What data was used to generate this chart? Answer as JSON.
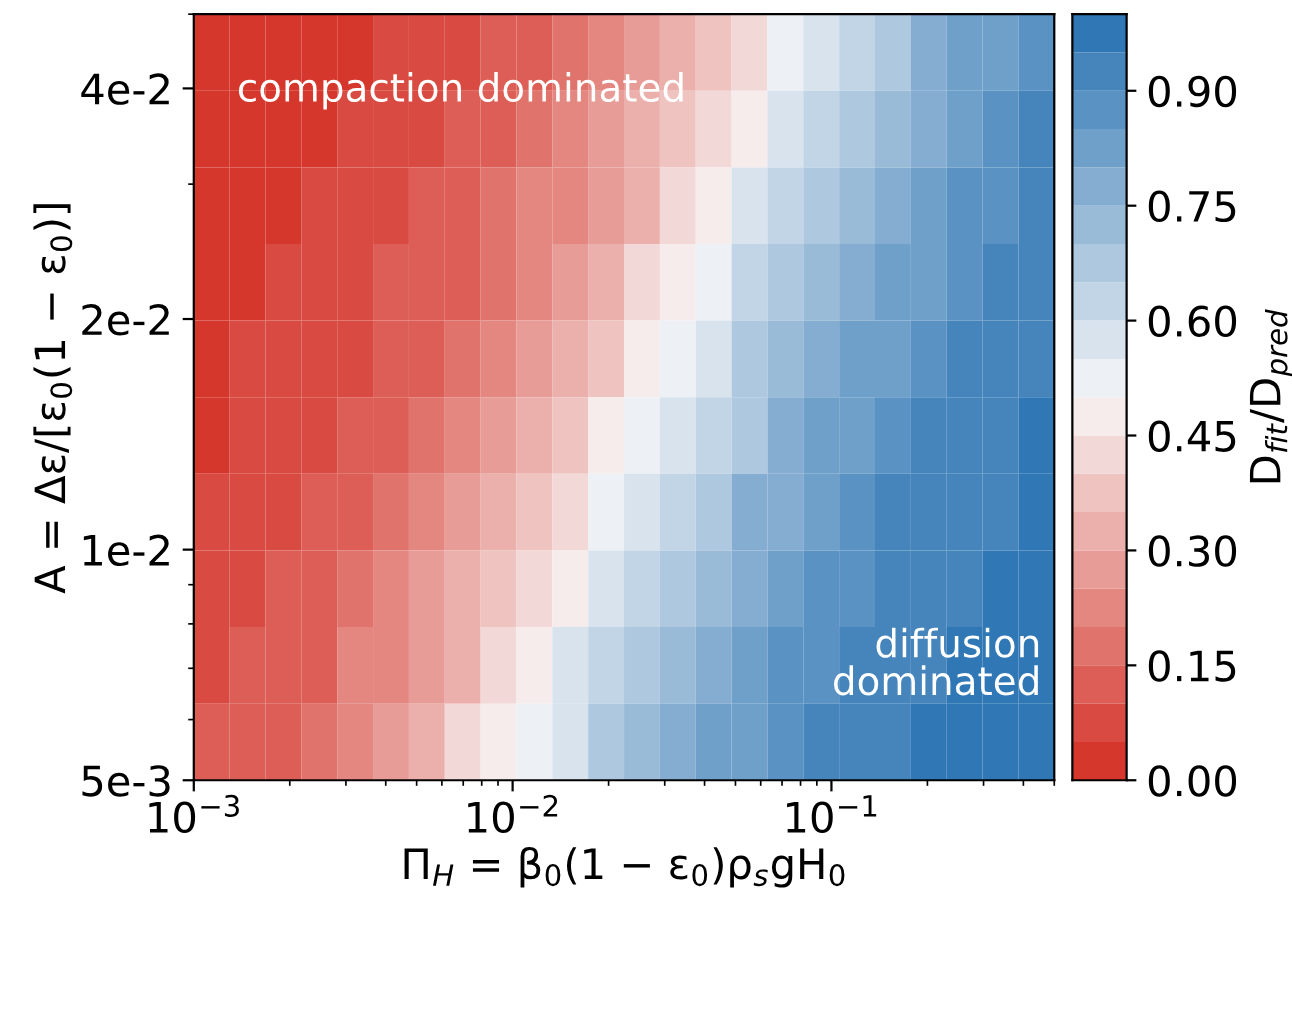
{
  "chart_data": {
    "type": "heatmap",
    "xlabel": "Π$_{H}$ = β$_{0}$(1 − ε$_{0}$)ρ$_{s}$gH$_{0}$",
    "ylabel": "A = Δε/[ε$_{0}$(1 − ε$_{0}$)]",
    "clabel": "D$_{fit}$/D$_{pred}$",
    "annotations": [
      "compaction dominated",
      "diffusion\ndominated"
    ],
    "log": "xy",
    "xlim": [
      0.001,
      0.5
    ],
    "ylim": [
      0.005,
      0.05
    ],
    "xticks": [
      {
        "value": 0.001,
        "label": "10$^{−3}$"
      },
      {
        "value": 0.01,
        "label": "10$^{−2}$"
      },
      {
        "value": 0.1,
        "label": "10$^{−1}$"
      }
    ],
    "yticks": [
      {
        "value": 0.005,
        "label": "5e-3"
      },
      {
        "value": 0.01,
        "label": "1e-2"
      },
      {
        "value": 0.02,
        "label": "2e-2"
      },
      {
        "value": 0.04,
        "label": "4e-2"
      }
    ],
    "clim": [
      0,
      1
    ],
    "cticks": [
      {
        "value": 0,
        "label": "0.00"
      },
      {
        "value": 0.15,
        "label": "0.15"
      },
      {
        "value": 0.3,
        "label": "0.30"
      },
      {
        "value": 0.45,
        "label": "0.45"
      },
      {
        "value": 0.6,
        "label": "0.60"
      },
      {
        "value": 0.75,
        "label": "0.75"
      },
      {
        "value": 0.9,
        "label": "0.90"
      }
    ],
    "grid": false,
    "cells": [
      [
        0.01,
        0.02,
        0.03,
        0.04,
        0.04,
        0.05,
        0.07,
        0.09,
        0.11,
        0.14,
        0.17,
        0.21,
        0.26,
        0.32,
        0.38,
        0.44,
        0.5,
        0.57,
        0.63,
        0.7,
        0.75,
        0.8,
        0.83,
        0.87
      ],
      [
        0.02,
        0.03,
        0.03,
        0.04,
        0.05,
        0.07,
        0.08,
        0.1,
        0.13,
        0.16,
        0.21,
        0.25,
        0.31,
        0.36,
        0.43,
        0.49,
        0.56,
        0.62,
        0.69,
        0.74,
        0.79,
        0.83,
        0.86,
        0.9
      ],
      [
        0.02,
        0.03,
        0.04,
        0.05,
        0.06,
        0.08,
        0.1,
        0.13,
        0.16,
        0.2,
        0.24,
        0.3,
        0.35,
        0.42,
        0.48,
        0.55,
        0.61,
        0.67,
        0.73,
        0.78,
        0.82,
        0.86,
        0.89,
        0.91
      ],
      [
        0.03,
        0.04,
        0.05,
        0.06,
        0.08,
        0.1,
        0.12,
        0.15,
        0.19,
        0.24,
        0.29,
        0.34,
        0.4,
        0.47,
        0.54,
        0.61,
        0.66,
        0.72,
        0.77,
        0.81,
        0.85,
        0.88,
        0.91,
        0.93
      ],
      [
        0.04,
        0.05,
        0.06,
        0.08,
        0.09,
        0.12,
        0.14,
        0.18,
        0.23,
        0.28,
        0.34,
        0.39,
        0.46,
        0.52,
        0.6,
        0.65,
        0.71,
        0.76,
        0.81,
        0.85,
        0.88,
        0.91,
        0.93,
        0.95
      ],
      [
        0.04,
        0.05,
        0.07,
        0.09,
        0.11,
        0.14,
        0.18,
        0.22,
        0.27,
        0.33,
        0.38,
        0.45,
        0.51,
        0.58,
        0.64,
        0.7,
        0.76,
        0.8,
        0.84,
        0.87,
        0.9,
        0.92,
        0.94,
        0.96
      ],
      [
        0.05,
        0.07,
        0.09,
        0.11,
        0.13,
        0.17,
        0.21,
        0.26,
        0.32,
        0.37,
        0.44,
        0.5,
        0.57,
        0.63,
        0.69,
        0.75,
        0.79,
        0.83,
        0.87,
        0.9,
        0.92,
        0.94,
        0.95,
        0.96
      ],
      [
        0.07,
        0.08,
        0.1,
        0.13,
        0.16,
        0.2,
        0.25,
        0.31,
        0.36,
        0.42,
        0.49,
        0.56,
        0.62,
        0.68,
        0.74,
        0.79,
        0.83,
        0.86,
        0.89,
        0.92,
        0.94,
        0.95,
        0.96,
        0.97
      ],
      [
        0.08,
        0.1,
        0.12,
        0.15,
        0.2,
        0.24,
        0.3,
        0.35,
        0.41,
        0.48,
        0.55,
        0.61,
        0.67,
        0.73,
        0.78,
        0.82,
        0.86,
        0.89,
        0.91,
        0.93,
        0.95,
        0.96,
        0.97,
        0.97
      ],
      [
        0.1,
        0.12,
        0.15,
        0.19,
        0.23,
        0.29,
        0.34,
        0.4,
        0.47,
        0.53,
        0.6,
        0.66,
        0.72,
        0.77,
        0.81,
        0.85,
        0.88,
        0.91,
        0.93,
        0.95,
        0.96,
        0.96,
        0.97,
        0.98
      ]
    ]
  }
}
